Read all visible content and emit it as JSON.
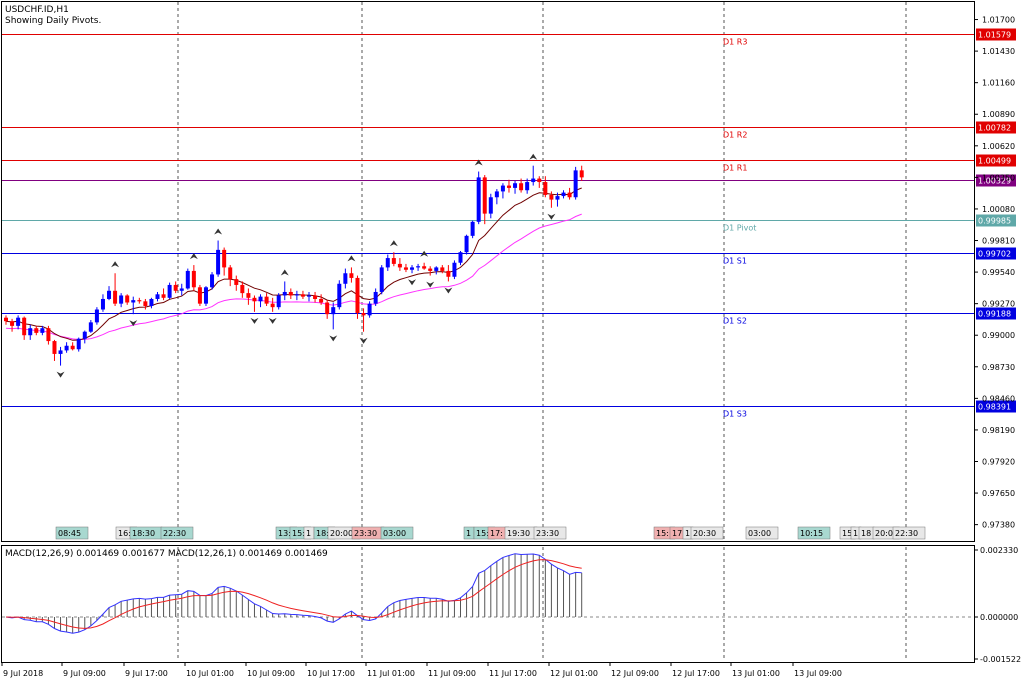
{
  "header": {
    "symbol_line": "USDCHF.ID,H1",
    "subtitle": "Showing Daily Pivots."
  },
  "price_axis": {
    "ticks": [
      "1.01700",
      "1.01430",
      "1.01160",
      "1.00890",
      "1.00620",
      "1.00350",
      "1.00080",
      "0.99810",
      "0.99540",
      "0.99270",
      "0.99000",
      "0.98730",
      "0.98460",
      "0.98190",
      "0.97920",
      "0.97650",
      "0.97380"
    ],
    "tick_values": [
      1.017,
      1.0143,
      1.0116,
      1.0089,
      1.0062,
      1.0035,
      1.0008,
      0.9981,
      0.9954,
      0.9927,
      0.99,
      0.9873,
      0.9846,
      0.9819,
      0.9792,
      0.9765,
      0.9738
    ]
  },
  "pivots": [
    {
      "name": "D1 R3",
      "value": 1.01579,
      "label": "1.01579",
      "color": "#e00000",
      "kind": "resistance"
    },
    {
      "name": "D1 R2",
      "value": 1.00782,
      "label": "1.00782",
      "color": "#e00000",
      "kind": "resistance"
    },
    {
      "name": "D1 R1",
      "value": 1.00499,
      "label": "1.00499",
      "color": "#e00000",
      "kind": "resistance"
    },
    {
      "name": "D1 Pivot",
      "value": 0.99985,
      "label": "0.99985",
      "color": "#5fa8a8",
      "kind": "pivot"
    },
    {
      "name": "D1 S1",
      "value": 0.99702,
      "label": "0.99702",
      "color": "#0000e0",
      "kind": "support"
    },
    {
      "name": "D1 S2",
      "value": 0.99188,
      "label": "0.99188",
      "color": "#0000e0",
      "kind": "support"
    },
    {
      "name": "D1 S3",
      "value": 0.98391,
      "label": "0.98391",
      "color": "#0000e0",
      "kind": "support"
    }
  ],
  "current_price": {
    "value": 1.00329,
    "label": "1.00329",
    "color": "#800080"
  },
  "time_axis": {
    "labels": [
      "9 Jul 2018",
      "9 Jul 09:00",
      "9 Jul 17:00",
      "10 Jul 01:00",
      "10 Jul 09:00",
      "10 Jul 17:00",
      "11 Jul 01:00",
      "11 Jul 09:00",
      "11 Jul 17:00",
      "12 Jul 01:00",
      "12 Jul 09:00",
      "12 Jul 17:00",
      "13 Jul 01:00",
      "13 Jul 09:00"
    ]
  },
  "session_tags": [
    {
      "text": "08:45",
      "color": "#a8d8d0"
    },
    {
      "text": "16:",
      "color": "#e8e8e8"
    },
    {
      "text": "18:30",
      "color": "#a8d8d0"
    },
    {
      "text": "22:30",
      "color": "#a8d8d0"
    },
    {
      "text": "13:",
      "color": "#a8d8d0"
    },
    {
      "text": "15:",
      "color": "#a8d8d0"
    },
    {
      "text": "1",
      "color": "#e8e8e8"
    },
    {
      "text": "18:",
      "color": "#a8d8d0"
    },
    {
      "text": "20:00",
      "color": "#e8e8e8"
    },
    {
      "text": "23:30",
      "color": "#f0b0b0"
    },
    {
      "text": "03:00",
      "color": "#a8d8d0"
    },
    {
      "text": "1",
      "color": "#a8d8d0"
    },
    {
      "text": "15:",
      "color": "#a8d8d0"
    },
    {
      "text": "17:",
      "color": "#f0b0b0"
    },
    {
      "text": "19:30",
      "color": "#e8e8e8"
    },
    {
      "text": "23:30",
      "color": "#e8e8e8"
    },
    {
      "text": "15:",
      "color": "#f0b0b0"
    },
    {
      "text": "17:",
      "color": "#f0b0b0"
    },
    {
      "text": "1",
      "color": "#e8e8e8"
    },
    {
      "text": "20:30",
      "color": "#e8e8e8"
    },
    {
      "text": "03:00",
      "color": "#e8e8e8"
    },
    {
      "text": "10:15",
      "color": "#a8d8d0"
    },
    {
      "text": "15",
      "color": "#e8e8e8"
    },
    {
      "text": "1",
      "color": "#e8e8e8"
    },
    {
      "text": "18",
      "color": "#e8e8e8"
    },
    {
      "text": "20:0",
      "color": "#e8e8e8"
    },
    {
      "text": "22:30",
      "color": "#e8e8e8"
    }
  ],
  "macd": {
    "label": "MACD(12,26,9) 0.001469 0.001677 MACD(12,26,1) 0.001469 0.001469",
    "axis_ticks": [
      "0.002330",
      "0.000000",
      "-0.001522"
    ],
    "axis_values": [
      0.00233,
      0.0,
      -0.001522
    ]
  },
  "colors": {
    "bull": "#0000ff",
    "bear": "#ff0000",
    "ma_fast": "#700000",
    "ma_slow": "#ff33ff",
    "macd_line": "#3333ff",
    "signal_line": "#ee2222",
    "grid": "#555555"
  },
  "chart_data": {
    "type": "candlestick",
    "symbol": "USDCHF.ID",
    "timeframe": "H1",
    "y_range": [
      0.9724,
      1.0185
    ],
    "candles_ohlc": [
      [
        0.9915,
        0.9917,
        0.9909,
        0.9912
      ],
      [
        0.9912,
        0.9914,
        0.9903,
        0.9908
      ],
      [
        0.9908,
        0.9917,
        0.9905,
        0.9915
      ],
      [
        0.9915,
        0.9916,
        0.9896,
        0.99
      ],
      [
        0.99,
        0.9909,
        0.9896,
        0.9906
      ],
      [
        0.9906,
        0.9908,
        0.99,
        0.9902
      ],
      [
        0.9902,
        0.9908,
        0.99,
        0.9906
      ],
      [
        0.9906,
        0.9908,
        0.9892,
        0.9895
      ],
      [
        0.9895,
        0.9896,
        0.9878,
        0.9884
      ],
      [
        0.9884,
        0.989,
        0.9874,
        0.9887
      ],
      [
        0.9887,
        0.9894,
        0.9885,
        0.9891
      ],
      [
        0.9891,
        0.9894,
        0.9887,
        0.9888
      ],
      [
        0.9888,
        0.9898,
        0.9886,
        0.9897
      ],
      [
        0.9897,
        0.9904,
        0.9893,
        0.9903
      ],
      [
        0.9903,
        0.9913,
        0.9902,
        0.9911
      ],
      [
        0.9911,
        0.9924,
        0.9909,
        0.9922
      ],
      [
        0.9922,
        0.9935,
        0.992,
        0.9931
      ],
      [
        0.9931,
        0.9942,
        0.993,
        0.9938
      ],
      [
        0.9938,
        0.9953,
        0.9925,
        0.9927
      ],
      [
        0.9927,
        0.9936,
        0.9924,
        0.9934
      ],
      [
        0.9934,
        0.9935,
        0.9926,
        0.9928
      ],
      [
        0.9928,
        0.9933,
        0.9918,
        0.993
      ],
      [
        0.993,
        0.9932,
        0.9927,
        0.9929
      ],
      [
        0.9929,
        0.9931,
        0.9922,
        0.9925
      ],
      [
        0.9925,
        0.9932,
        0.9923,
        0.9931
      ],
      [
        0.9931,
        0.9937,
        0.9929,
        0.9935
      ],
      [
        0.9935,
        0.994,
        0.993,
        0.9932
      ],
      [
        0.9932,
        0.9945,
        0.9931,
        0.9943
      ],
      [
        0.9943,
        0.9946,
        0.9936,
        0.9938
      ],
      [
        0.9938,
        0.9944,
        0.9934,
        0.994
      ],
      [
        0.994,
        0.9957,
        0.9939,
        0.9955
      ],
      [
        0.9955,
        0.996,
        0.9938,
        0.9941
      ],
      [
        0.9941,
        0.9943,
        0.9925,
        0.9927
      ],
      [
        0.9927,
        0.9942,
        0.9925,
        0.9941
      ],
      [
        0.9941,
        0.9954,
        0.9939,
        0.9952
      ],
      [
        0.9952,
        0.9981,
        0.995,
        0.9973
      ],
      [
        0.9973,
        0.9975,
        0.9951,
        0.9958
      ],
      [
        0.9958,
        0.996,
        0.9942,
        0.9948
      ],
      [
        0.9948,
        0.9951,
        0.9938,
        0.9943
      ],
      [
        0.9943,
        0.9946,
        0.9932,
        0.9936
      ],
      [
        0.9936,
        0.994,
        0.9926,
        0.9932
      ],
      [
        0.9932,
        0.9934,
        0.992,
        0.9929
      ],
      [
        0.9929,
        0.9935,
        0.9924,
        0.9933
      ],
      [
        0.9933,
        0.9936,
        0.9925,
        0.9927
      ],
      [
        0.9927,
        0.9932,
        0.992,
        0.9924
      ],
      [
        0.9924,
        0.9936,
        0.9922,
        0.9934
      ],
      [
        0.9934,
        0.9946,
        0.993,
        0.9937
      ],
      [
        0.9937,
        0.994,
        0.9931,
        0.9934
      ],
      [
        0.9934,
        0.9938,
        0.993,
        0.9935
      ],
      [
        0.9935,
        0.9938,
        0.9931,
        0.9933
      ],
      [
        0.9933,
        0.9937,
        0.9929,
        0.9934
      ],
      [
        0.9934,
        0.9937,
        0.9928,
        0.9931
      ],
      [
        0.9931,
        0.9935,
        0.9926,
        0.9928
      ],
      [
        0.9928,
        0.993,
        0.9914,
        0.9918
      ],
      [
        0.9918,
        0.9928,
        0.9905,
        0.9924
      ],
      [
        0.9924,
        0.9947,
        0.9922,
        0.9944
      ],
      [
        0.9944,
        0.9957,
        0.994,
        0.9953
      ],
      [
        0.9953,
        0.9958,
        0.9945,
        0.9949
      ],
      [
        0.9949,
        0.9951,
        0.9914,
        0.9919
      ],
      [
        0.9919,
        0.9923,
        0.9903,
        0.9917
      ],
      [
        0.9917,
        0.9929,
        0.9915,
        0.9927
      ],
      [
        0.9927,
        0.994,
        0.9925,
        0.9937
      ],
      [
        0.9937,
        0.996,
        0.9935,
        0.9958
      ],
      [
        0.9958,
        0.9969,
        0.9955,
        0.9966
      ],
      [
        0.9966,
        0.9971,
        0.9959,
        0.9961
      ],
      [
        0.9961,
        0.9966,
        0.9955,
        0.9958
      ],
      [
        0.9958,
        0.9961,
        0.9954,
        0.9956
      ],
      [
        0.9956,
        0.996,
        0.9953,
        0.9958
      ],
      [
        0.9958,
        0.9961,
        0.9955,
        0.9959
      ],
      [
        0.9959,
        0.9962,
        0.9956,
        0.9957
      ],
      [
        0.9957,
        0.9959,
        0.9951,
        0.9955
      ],
      [
        0.9955,
        0.9959,
        0.9952,
        0.9958
      ],
      [
        0.9958,
        0.996,
        0.9953,
        0.9955
      ],
      [
        0.9955,
        0.996,
        0.9946,
        0.995
      ],
      [
        0.995,
        0.9964,
        0.9948,
        0.9962
      ],
      [
        0.9962,
        0.9972,
        0.996,
        0.9971
      ],
      [
        0.9971,
        0.9986,
        0.9969,
        0.9985
      ],
      [
        0.9985,
        0.9998,
        0.9983,
        0.9997
      ],
      [
        0.9997,
        1.004,
        0.9995,
        1.0035
      ],
      [
        1.0035,
        1.0037,
        0.9995,
        1.0004
      ],
      [
        1.0004,
        1.0021,
        1.0,
        1.0018
      ],
      [
        1.0018,
        1.0025,
        1.0012,
        1.0023
      ],
      [
        1.0023,
        1.003,
        1.0017,
        1.0028
      ],
      [
        1.0028,
        1.0033,
        1.0022,
        1.0026
      ],
      [
        1.0026,
        1.0032,
        1.0021,
        1.003
      ],
      [
        1.003,
        1.0034,
        1.0022,
        1.0024
      ],
      [
        1.0024,
        1.0034,
        1.0021,
        1.0031
      ],
      [
        1.0031,
        1.0045,
        1.0028,
        1.0034
      ],
      [
        1.0034,
        1.0036,
        1.0026,
        1.0031
      ],
      [
        1.0031,
        1.0036,
        1.0018,
        1.002
      ],
      [
        1.002,
        1.0023,
        1.0009,
        1.0016
      ],
      [
        1.0016,
        1.0022,
        1.001,
        1.0019
      ],
      [
        1.0019,
        1.0024,
        1.0017,
        1.0022
      ],
      [
        1.0022,
        1.0026,
        1.0016,
        1.0018
      ],
      [
        1.0018,
        1.0044,
        1.0016,
        1.0041
      ],
      [
        1.0041,
        1.0045,
        1.0032,
        1.0035
      ]
    ]
  }
}
